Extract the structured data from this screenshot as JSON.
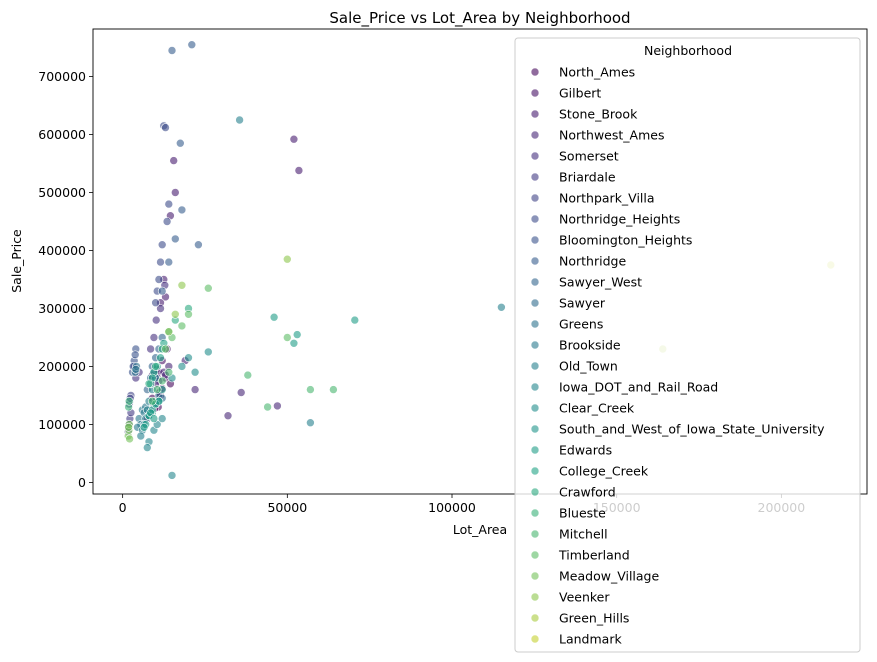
{
  "chart_data": {
    "type": "scatter",
    "title": "Sale_Price vs Lot_Area by Neighborhood",
    "xlabel": "Lot_Area",
    "ylabel": "Sale_Price",
    "xlim": [
      -9000,
      226000
    ],
    "ylim": [
      -20000,
      782000
    ],
    "xticks": [
      0,
      50000,
      100000,
      150000,
      200000
    ],
    "yticks": [
      0,
      100000,
      200000,
      300000,
      400000,
      500000,
      600000,
      700000
    ],
    "grid": false,
    "legend": {
      "title": "Neighborhood",
      "placement": "upper-right",
      "entries": [
        {
          "name": "North_Ames",
          "color": "#46085c"
        },
        {
          "name": "Gilbert",
          "color": "#471365"
        },
        {
          "name": "Stone_Brook",
          "color": "#481d6f"
        },
        {
          "name": "Northwest_Ames",
          "color": "#472777"
        },
        {
          "name": "Somerset",
          "color": "#46307e"
        },
        {
          "name": "Briardale",
          "color": "#433a83"
        },
        {
          "name": "Northpark_Villa",
          "color": "#414487"
        },
        {
          "name": "Northridge_Heights",
          "color": "#3e4c8a"
        },
        {
          "name": "Bloomington_Heights",
          "color": "#3a548c"
        },
        {
          "name": "Northridge",
          "color": "#375d8d"
        },
        {
          "name": "Sawyer_West",
          "color": "#33658d"
        },
        {
          "name": "Sawyer",
          "color": "#306c8e"
        },
        {
          "name": "Greens",
          "color": "#2d738e"
        },
        {
          "name": "Brookside",
          "color": "#2a7a8e"
        },
        {
          "name": "Old_Town",
          "color": "#27808e"
        },
        {
          "name": "Iowa_DOT_and_Rail_Road",
          "color": "#25878e"
        },
        {
          "name": "Clear_Creek",
          "color": "#228e8c"
        },
        {
          "name": "South_and_West_of_Iowa_State_University",
          "color": "#20958a"
        },
        {
          "name": "Edwards",
          "color": "#1f9c87"
        },
        {
          "name": "College_Creek",
          "color": "#22a385"
        },
        {
          "name": "Crawford",
          "color": "#2aa97f"
        },
        {
          "name": "Blueste",
          "color": "#39b078"
        },
        {
          "name": "Mitchell",
          "color": "#4ab66f"
        },
        {
          "name": "Timberland",
          "color": "#5ebc66"
        },
        {
          "name": "Meadow_Village",
          "color": "#75c25a"
        },
        {
          "name": "Veenker",
          "color": "#8ec74d"
        },
        {
          "name": "Green_Hills",
          "color": "#aacc3f"
        },
        {
          "name": "Landmark",
          "color": "#c4d131"
        }
      ]
    },
    "series": [
      {
        "name": "North_Ames",
        "x": [
          9500,
          11200,
          10800,
          8000,
          13000,
          9000,
          12000,
          14500,
          7500,
          10000,
          11500,
          9800
        ],
        "y": [
          140000,
          155000,
          130000,
          120000,
          180000,
          145000,
          162000,
          170000,
          110000,
          135000,
          150000,
          128000
        ]
      },
      {
        "name": "Gilbert",
        "x": [
          9000,
          10500,
          12000,
          8800,
          11000,
          13500,
          9600
        ],
        "y": [
          185000,
          195000,
          210000,
          178000,
          190000,
          230000,
          182000
        ]
      },
      {
        "name": "Stone_Brook",
        "x": [
          13000,
          14500,
          15500,
          12500,
          52000,
          53500,
          16000,
          11500
        ],
        "y": [
          320000,
          460000,
          555000,
          350000,
          592000,
          538000,
          500000,
          310000
        ]
      },
      {
        "name": "Northwest_Ames",
        "x": [
          10500,
          12500,
          11000,
          14000,
          19000,
          13000,
          10000,
          36000,
          32000,
          47000,
          22000
        ],
        "y": [
          180000,
          190000,
          175000,
          200000,
          210000,
          185000,
          170000,
          155000,
          115000,
          132000,
          160000
        ]
      },
      {
        "name": "Somerset",
        "x": [
          4000,
          8500,
          9500,
          10200,
          3500,
          11500,
          12800,
          5000
        ],
        "y": [
          180000,
          230000,
          250000,
          280000,
          200000,
          300000,
          340000,
          190000
        ]
      },
      {
        "name": "Briardale",
        "x": [
          2000,
          2200,
          1800,
          2500,
          1700
        ],
        "y": [
          100000,
          110000,
          95000,
          120000,
          88000
        ]
      },
      {
        "name": "Northpark_Villa",
        "x": [
          2200,
          2500,
          2000,
          2300
        ],
        "y": [
          140000,
          150000,
          135000,
          145000
        ]
      },
      {
        "name": "Northridge_Heights",
        "x": [
          10000,
          11500,
          12000,
          13500,
          12500,
          14000,
          11000,
          10500,
          13000
        ],
        "y": [
          310000,
          380000,
          410000,
          450000,
          615000,
          480000,
          350000,
          330000,
          612000
        ]
      },
      {
        "name": "Bloomington_Heights",
        "x": [
          3000,
          3500,
          4000,
          3200,
          3800
        ],
        "y": [
          190000,
          210000,
          230000,
          200000,
          220000
        ]
      },
      {
        "name": "Northridge",
        "x": [
          12000,
          14000,
          16000,
          18000,
          15000,
          21000,
          23000,
          17500
        ],
        "y": [
          330000,
          380000,
          420000,
          470000,
          745000,
          755000,
          410000,
          585000
        ]
      },
      {
        "name": "Sawyer_West",
        "x": [
          8500,
          9000,
          10000,
          11000,
          7500,
          12000,
          9500
        ],
        "y": [
          180000,
          200000,
          215000,
          230000,
          160000,
          250000,
          190000
        ]
      },
      {
        "name": "Sawyer",
        "x": [
          9000,
          10000,
          8500,
          11000,
          9500,
          12000,
          7800
        ],
        "y": [
          130000,
          140000,
          125000,
          150000,
          135000,
          145000,
          118000
        ]
      },
      {
        "name": "Greens",
        "x": [
          3800,
          4200,
          4000
        ],
        "y": [
          190000,
          200000,
          195000
        ]
      },
      {
        "name": "Brookside",
        "x": [
          5000,
          6000,
          7000,
          5500,
          6500,
          4500
        ],
        "y": [
          110000,
          125000,
          130000,
          100000,
          120000,
          95000
        ]
      },
      {
        "name": "Old_Town",
        "x": [
          6000,
          7000,
          7500,
          8000,
          9000,
          5500,
          6500,
          10000,
          35500,
          115000,
          57000
        ],
        "y": [
          90000,
          110000,
          125000,
          140000,
          160000,
          80000,
          100000,
          180000,
          625000,
          302000,
          103000
        ]
      },
      {
        "name": "Iowa_DOT_and_Rail_Road",
        "x": [
          8000,
          9500,
          10500,
          7500,
          12000,
          15000
        ],
        "y": [
          70000,
          90000,
          100000,
          60000,
          110000,
          12000
        ]
      },
      {
        "name": "Clear_Creek",
        "x": [
          15000,
          18000,
          20000,
          22000,
          26000
        ],
        "y": [
          180000,
          200000,
          215000,
          190000,
          225000
        ]
      },
      {
        "name": "South_and_West_of_Iowa_State_University",
        "x": [
          9000,
          10000,
          11000,
          8000
        ],
        "y": [
          120000,
          135000,
          140000,
          115000
        ]
      },
      {
        "name": "Edwards",
        "x": [
          7000,
          8000,
          9000,
          10000,
          11000,
          8500,
          6500,
          52000,
          70500,
          12000,
          9500,
          46000,
          53000
        ],
        "y": [
          100000,
          115000,
          125000,
          135000,
          140000,
          120000,
          95000,
          240000,
          280000,
          160000,
          110000,
          285000,
          255000
        ]
      },
      {
        "name": "College_Creek",
        "x": [
          8500,
          9500,
          10500,
          11500,
          12500,
          9000
        ],
        "y": [
          170000,
          190000,
          200000,
          215000,
          240000,
          180000
        ]
      },
      {
        "name": "Crawford",
        "x": [
          8000,
          10000,
          12000,
          14000,
          16000,
          20000
        ],
        "y": [
          170000,
          200000,
          230000,
          260000,
          280000,
          300000
        ]
      },
      {
        "name": "Blueste",
        "x": [
          1800,
          2000
        ],
        "y": [
          130000,
          140000
        ]
      },
      {
        "name": "Mitchell",
        "x": [
          9000,
          10500,
          12000,
          14000,
          57000,
          64000,
          38000,
          44000
        ],
        "y": [
          140000,
          160000,
          175000,
          190000,
          160000,
          160000,
          185000,
          130000
        ]
      },
      {
        "name": "Timberland",
        "x": [
          13000,
          15000,
          18000,
          20000,
          26000,
          50000
        ],
        "y": [
          230000,
          250000,
          270000,
          290000,
          335000,
          250000
        ]
      },
      {
        "name": "Meadow_Village",
        "x": [
          1700,
          1900,
          2000,
          2100,
          1800
        ],
        "y": [
          80000,
          90000,
          100000,
          75000,
          95000
        ]
      },
      {
        "name": "Veenker",
        "x": [
          14000,
          16000,
          18000,
          50000
        ],
        "y": [
          260000,
          290000,
          340000,
          385000
        ]
      },
      {
        "name": "Green_Hills",
        "x": [
          164000
        ],
        "y": [
          230000
        ]
      },
      {
        "name": "Landmark",
        "x": [
          215000
        ],
        "y": [
          375000
        ]
      }
    ]
  }
}
